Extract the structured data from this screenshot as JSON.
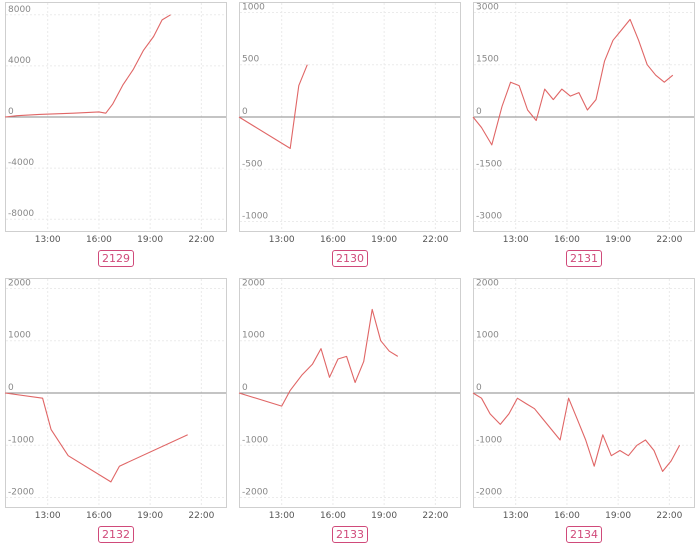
{
  "chart_data": [
    {
      "type": "line",
      "title": "",
      "badge": "2129",
      "ylim": [
        -9000,
        9000
      ],
      "yticks": [
        -8000,
        -4000,
        0,
        4000,
        8000
      ],
      "xlim": [
        10.5,
        23.5
      ],
      "xticks": [
        13,
        16,
        19,
        22
      ],
      "xtick_labels": [
        "13:00",
        "16:00",
        "19:00",
        "22:00"
      ],
      "grid": true,
      "series": [
        {
          "x": [
            10.5,
            11.2,
            12.5,
            14.5,
            16.0,
            16.4,
            16.8,
            17.4,
            18.0,
            18.6,
            19.2,
            19.7,
            20.2
          ],
          "y": [
            0,
            100,
            200,
            300,
            400,
            300,
            1000,
            2500,
            3700,
            5200,
            6300,
            7600,
            8000
          ]
        }
      ]
    },
    {
      "type": "line",
      "title": "",
      "badge": "2130",
      "ylim": [
        -1100,
        1100
      ],
      "yticks": [
        -1000,
        -500,
        0,
        500,
        1000
      ],
      "xlim": [
        10.5,
        23.5
      ],
      "xticks": [
        13,
        16,
        19,
        22
      ],
      "xtick_labels": [
        "13:00",
        "16:00",
        "19:00",
        "22:00"
      ],
      "grid": true,
      "series": [
        {
          "x": [
            10.5,
            13.5,
            14.0,
            14.5
          ],
          "y": [
            0,
            -300,
            300,
            500
          ]
        }
      ]
    },
    {
      "type": "line",
      "title": "",
      "badge": "2131",
      "ylim": [
        -3300,
        3300
      ],
      "yticks": [
        -3000,
        -1500,
        0,
        1500,
        3000
      ],
      "xlim": [
        10.5,
        23.5
      ],
      "xticks": [
        13,
        16,
        19,
        22
      ],
      "xtick_labels": [
        "13:00",
        "16:00",
        "19:00",
        "22:00"
      ],
      "grid": true,
      "series": [
        {
          "x": [
            10.5,
            11.0,
            11.6,
            12.2,
            12.7,
            13.2,
            13.7,
            14.2,
            14.7,
            15.2,
            15.7,
            16.2,
            16.7,
            17.2,
            17.7,
            18.2,
            18.7,
            19.2,
            19.7,
            20.2,
            20.7,
            21.2,
            21.7,
            22.2
          ],
          "y": [
            0,
            -300,
            -800,
            300,
            1000,
            900,
            200,
            -100,
            800,
            500,
            800,
            600,
            700,
            200,
            500,
            1600,
            2200,
            2500,
            2800,
            2200,
            1500,
            1200,
            1000,
            1200
          ]
        }
      ]
    },
    {
      "type": "line",
      "title": "",
      "badge": "2132",
      "ylim": [
        -2200,
        2200
      ],
      "yticks": [
        -2000,
        -1000,
        0,
        1000,
        2000
      ],
      "xlim": [
        10.5,
        23.5
      ],
      "xticks": [
        13,
        16,
        19,
        22
      ],
      "xtick_labels": [
        "13:00",
        "16:00",
        "19:00",
        "22:00"
      ],
      "grid": true,
      "series": [
        {
          "x": [
            10.5,
            12.7,
            13.2,
            14.2,
            16.7,
            17.2,
            21.2
          ],
          "y": [
            0,
            -100,
            -700,
            -1200,
            -1700,
            -1400,
            -800
          ]
        }
      ]
    },
    {
      "type": "line",
      "title": "",
      "badge": "2133",
      "ylim": [
        -2200,
        2200
      ],
      "yticks": [
        -2000,
        -1000,
        0,
        1000,
        2000
      ],
      "xlim": [
        10.5,
        23.5
      ],
      "xticks": [
        13,
        16,
        19,
        22
      ],
      "xtick_labels": [
        "13:00",
        "16:00",
        "19:00",
        "22:00"
      ],
      "grid": true,
      "series": [
        {
          "x": [
            10.5,
            13.0,
            13.5,
            14.2,
            14.8,
            15.3,
            15.8,
            16.3,
            16.8,
            17.3,
            17.8,
            18.3,
            18.8,
            19.3,
            19.8
          ],
          "y": [
            0,
            -250,
            50,
            350,
            550,
            850,
            300,
            650,
            700,
            200,
            600,
            1600,
            1000,
            800,
            700
          ]
        }
      ]
    },
    {
      "type": "line",
      "title": "",
      "badge": "2134",
      "ylim": [
        -2200,
        2200
      ],
      "yticks": [
        -2000,
        -1000,
        0,
        1000,
        2000
      ],
      "xlim": [
        10.5,
        23.5
      ],
      "xticks": [
        13,
        16,
        19,
        22
      ],
      "xtick_labels": [
        "13:00",
        "16:00",
        "19:00",
        "22:00"
      ],
      "grid": true,
      "series": [
        {
          "x": [
            10.5,
            11.0,
            11.5,
            12.1,
            12.6,
            13.1,
            13.6,
            14.1,
            14.6,
            15.1,
            15.6,
            16.1,
            16.6,
            17.1,
            17.6,
            18.1,
            18.6,
            19.1,
            19.6,
            20.1,
            20.6,
            21.1,
            21.6,
            22.1,
            22.6
          ],
          "y": [
            0,
            -100,
            -400,
            -600,
            -400,
            -100,
            -200,
            -300,
            -500,
            -700,
            -900,
            -100,
            -500,
            -900,
            -1400,
            -800,
            -1200,
            -1100,
            -1200,
            -1000,
            -900,
            -1100,
            -1500,
            -1300,
            -1000
          ]
        }
      ]
    }
  ]
}
